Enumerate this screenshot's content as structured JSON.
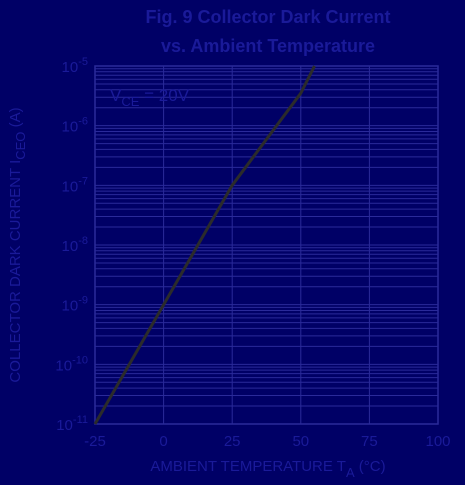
{
  "chart_data": {
    "type": "line",
    "title_line1": "Fig. 9 Collector Dark Current",
    "title_line2": "vs. Ambient Temperature",
    "xlabel_main": "AMBIENT TEMPERATURE T",
    "xlabel_sub": "A",
    "xlabel_unit": " (°C)",
    "ylabel_main": "COLLECTOR DARK CURRENT I",
    "ylabel_sub": "CEO",
    "ylabel_unit": " (A)",
    "annotation_main": "V",
    "annotation_sub": "CE",
    "annotation_value": " = 20V",
    "x_ticks": [
      "-25",
      "0",
      "25",
      "50",
      "75",
      "100"
    ],
    "y_ticks": [
      {
        "base": "10",
        "exp": "-5"
      },
      {
        "base": "10",
        "exp": "-6"
      },
      {
        "base": "10",
        "exp": "-7"
      },
      {
        "base": "10",
        "exp": "-8"
      },
      {
        "base": "10",
        "exp": "-9"
      },
      {
        "base": "10",
        "exp": "-10"
      },
      {
        "base": "10",
        "exp": "-11"
      }
    ],
    "xlim": [
      -25,
      100
    ],
    "ylim_log10": [
      -11,
      -5
    ],
    "y_scale": "log",
    "grid": true,
    "series": [
      {
        "x": [
          -25,
          0,
          25,
          50,
          55
        ],
        "y": [
          1e-11,
          1e-09,
          1e-07,
          3.5e-06,
          1e-05
        ]
      }
    ],
    "colors": {
      "background": "#000066",
      "text": "#1a1a99",
      "grid": "#2a2a9a",
      "frame": "#2a2a9a",
      "curve": "#2b2b2b"
    }
  }
}
